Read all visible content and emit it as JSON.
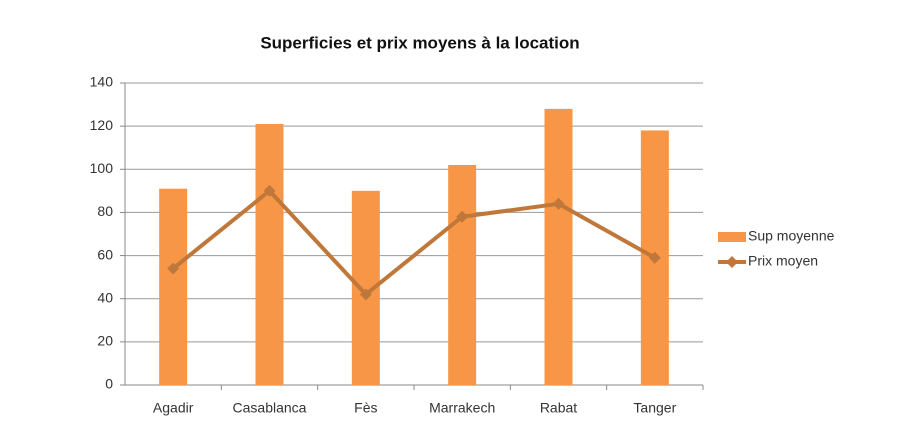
{
  "chart_data": {
    "type": "combo",
    "title": "Superficies et prix moyens à la location",
    "categories": [
      "Agadir",
      "Casablanca",
      "Fès",
      "Marrakech",
      "Rabat",
      "Tanger"
    ],
    "series": [
      {
        "name": "Sup moyenne",
        "type": "bar",
        "color": "#f79646",
        "values": [
          91,
          121,
          90,
          102,
          128,
          118
        ]
      },
      {
        "name": "Prix moyen",
        "type": "line",
        "color": "#c0773a",
        "values": [
          54,
          90,
          42,
          78,
          84,
          59
        ]
      }
    ],
    "ylim": [
      0,
      140
    ],
    "yticks": [
      0,
      20,
      40,
      60,
      80,
      100,
      120,
      140
    ],
    "grid": true,
    "legend": "right"
  }
}
